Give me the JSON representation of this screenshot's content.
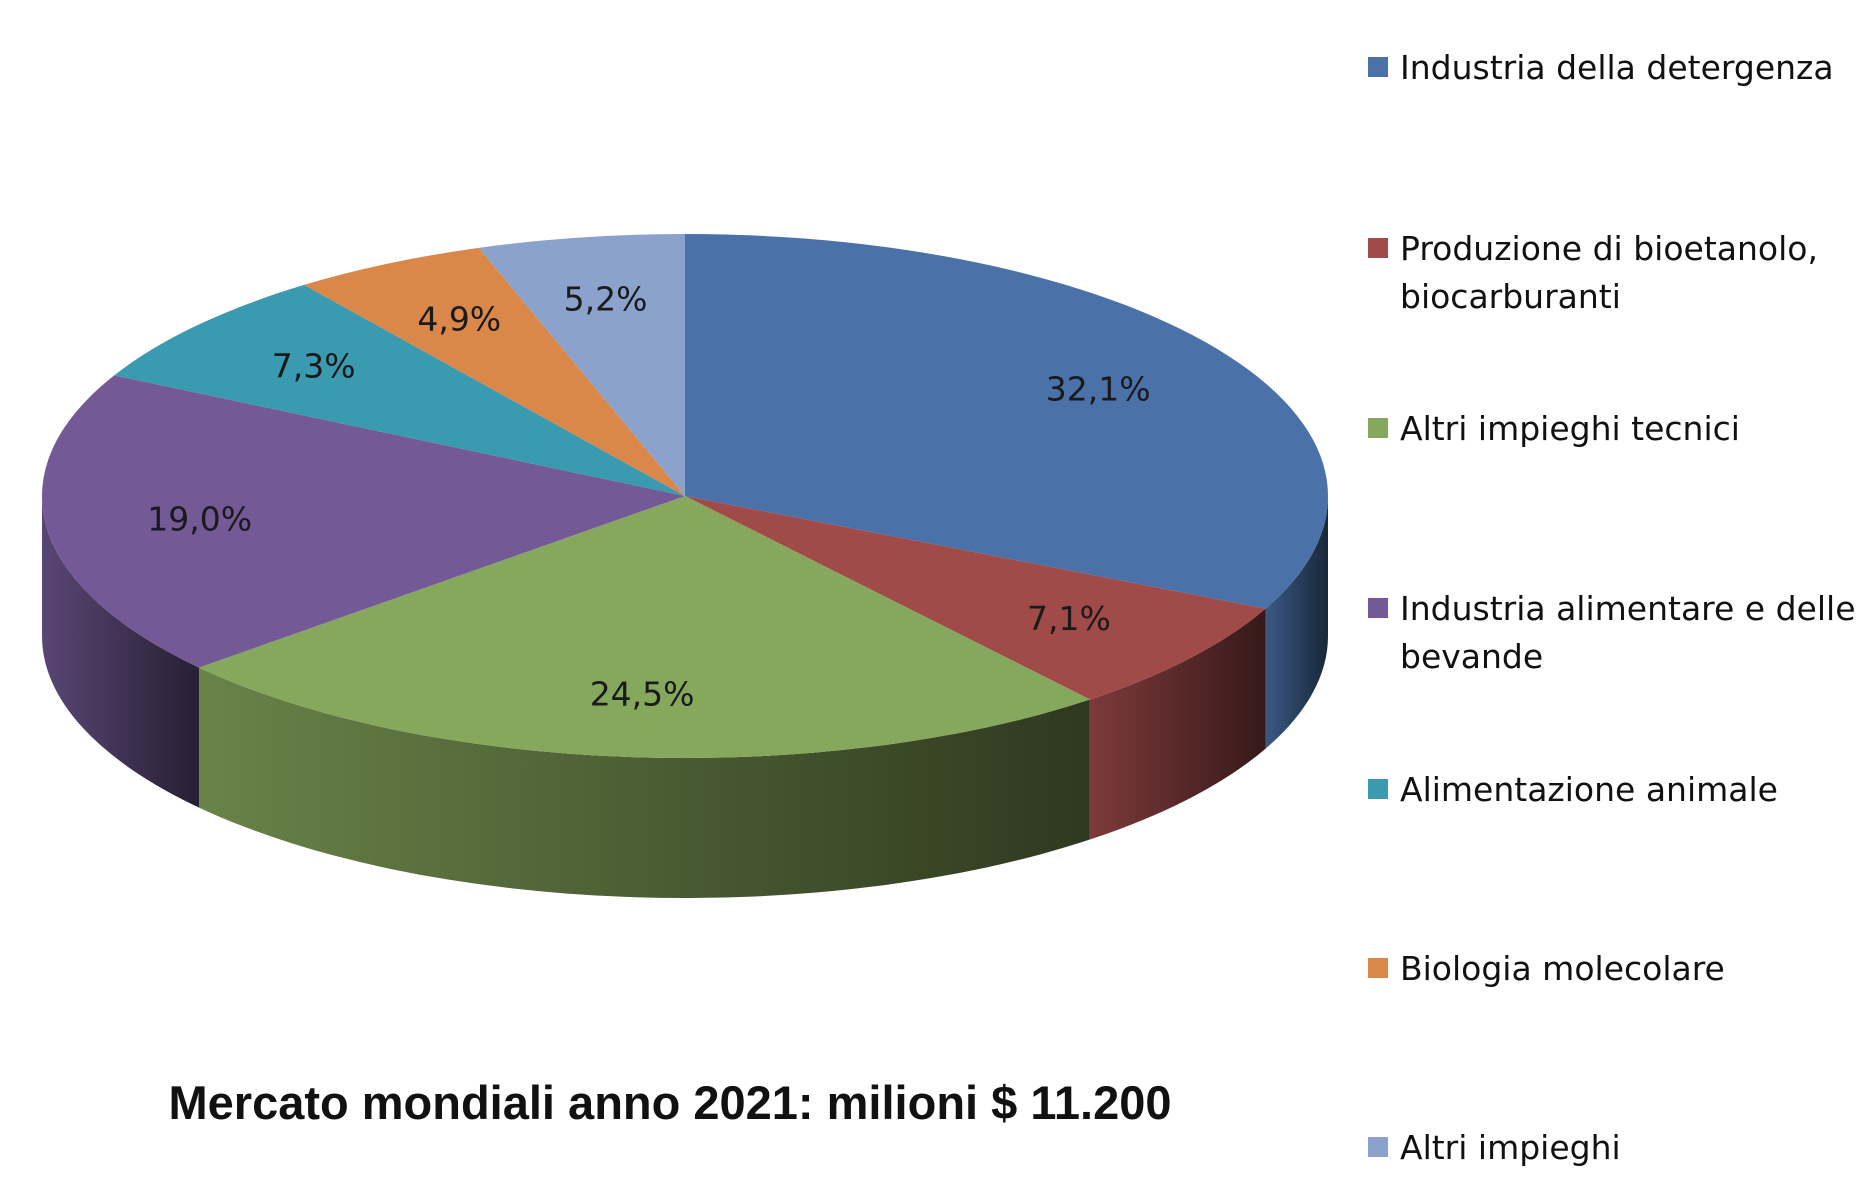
{
  "chart_data": {
    "type": "pie",
    "style": "3d",
    "categories": [
      "Industria della detergenza",
      "Produzione di bioetanolo, biocarburanti",
      "Altri impieghi tecnici",
      "Industria alimentare e delle bevande",
      "Alimentazione animale",
      "Biologia molecolare",
      "Altri impieghi"
    ],
    "values": [
      32.1,
      7.1,
      24.5,
      19.0,
      7.3,
      4.9,
      5.2
    ],
    "value_labels": [
      "32,1%",
      "7,1%",
      "24,5%",
      "19,0%",
      "7,3%",
      "4,9%",
      "5,2%"
    ],
    "colors": [
      "#4A72A8",
      "#A04A4A",
      "#86A85C",
      "#735A96",
      "#3A9AB0",
      "#D9884A",
      "#8AA2CC"
    ],
    "legend_labels": [
      [
        "Industria della detergenza"
      ],
      [
        "Produzione di bioetanolo,",
        "biocarburanti"
      ],
      [
        "Altri impieghi tecnici"
      ],
      [
        "Industria alimentare e delle",
        "bevande"
      ],
      [
        "Alimentazione animale"
      ],
      [
        "Biologia molecolare"
      ],
      [
        "Altri impieghi"
      ]
    ],
    "legend_position": "right",
    "title": "Mercato mondiali anno 2021: milioni $ 11.200"
  }
}
